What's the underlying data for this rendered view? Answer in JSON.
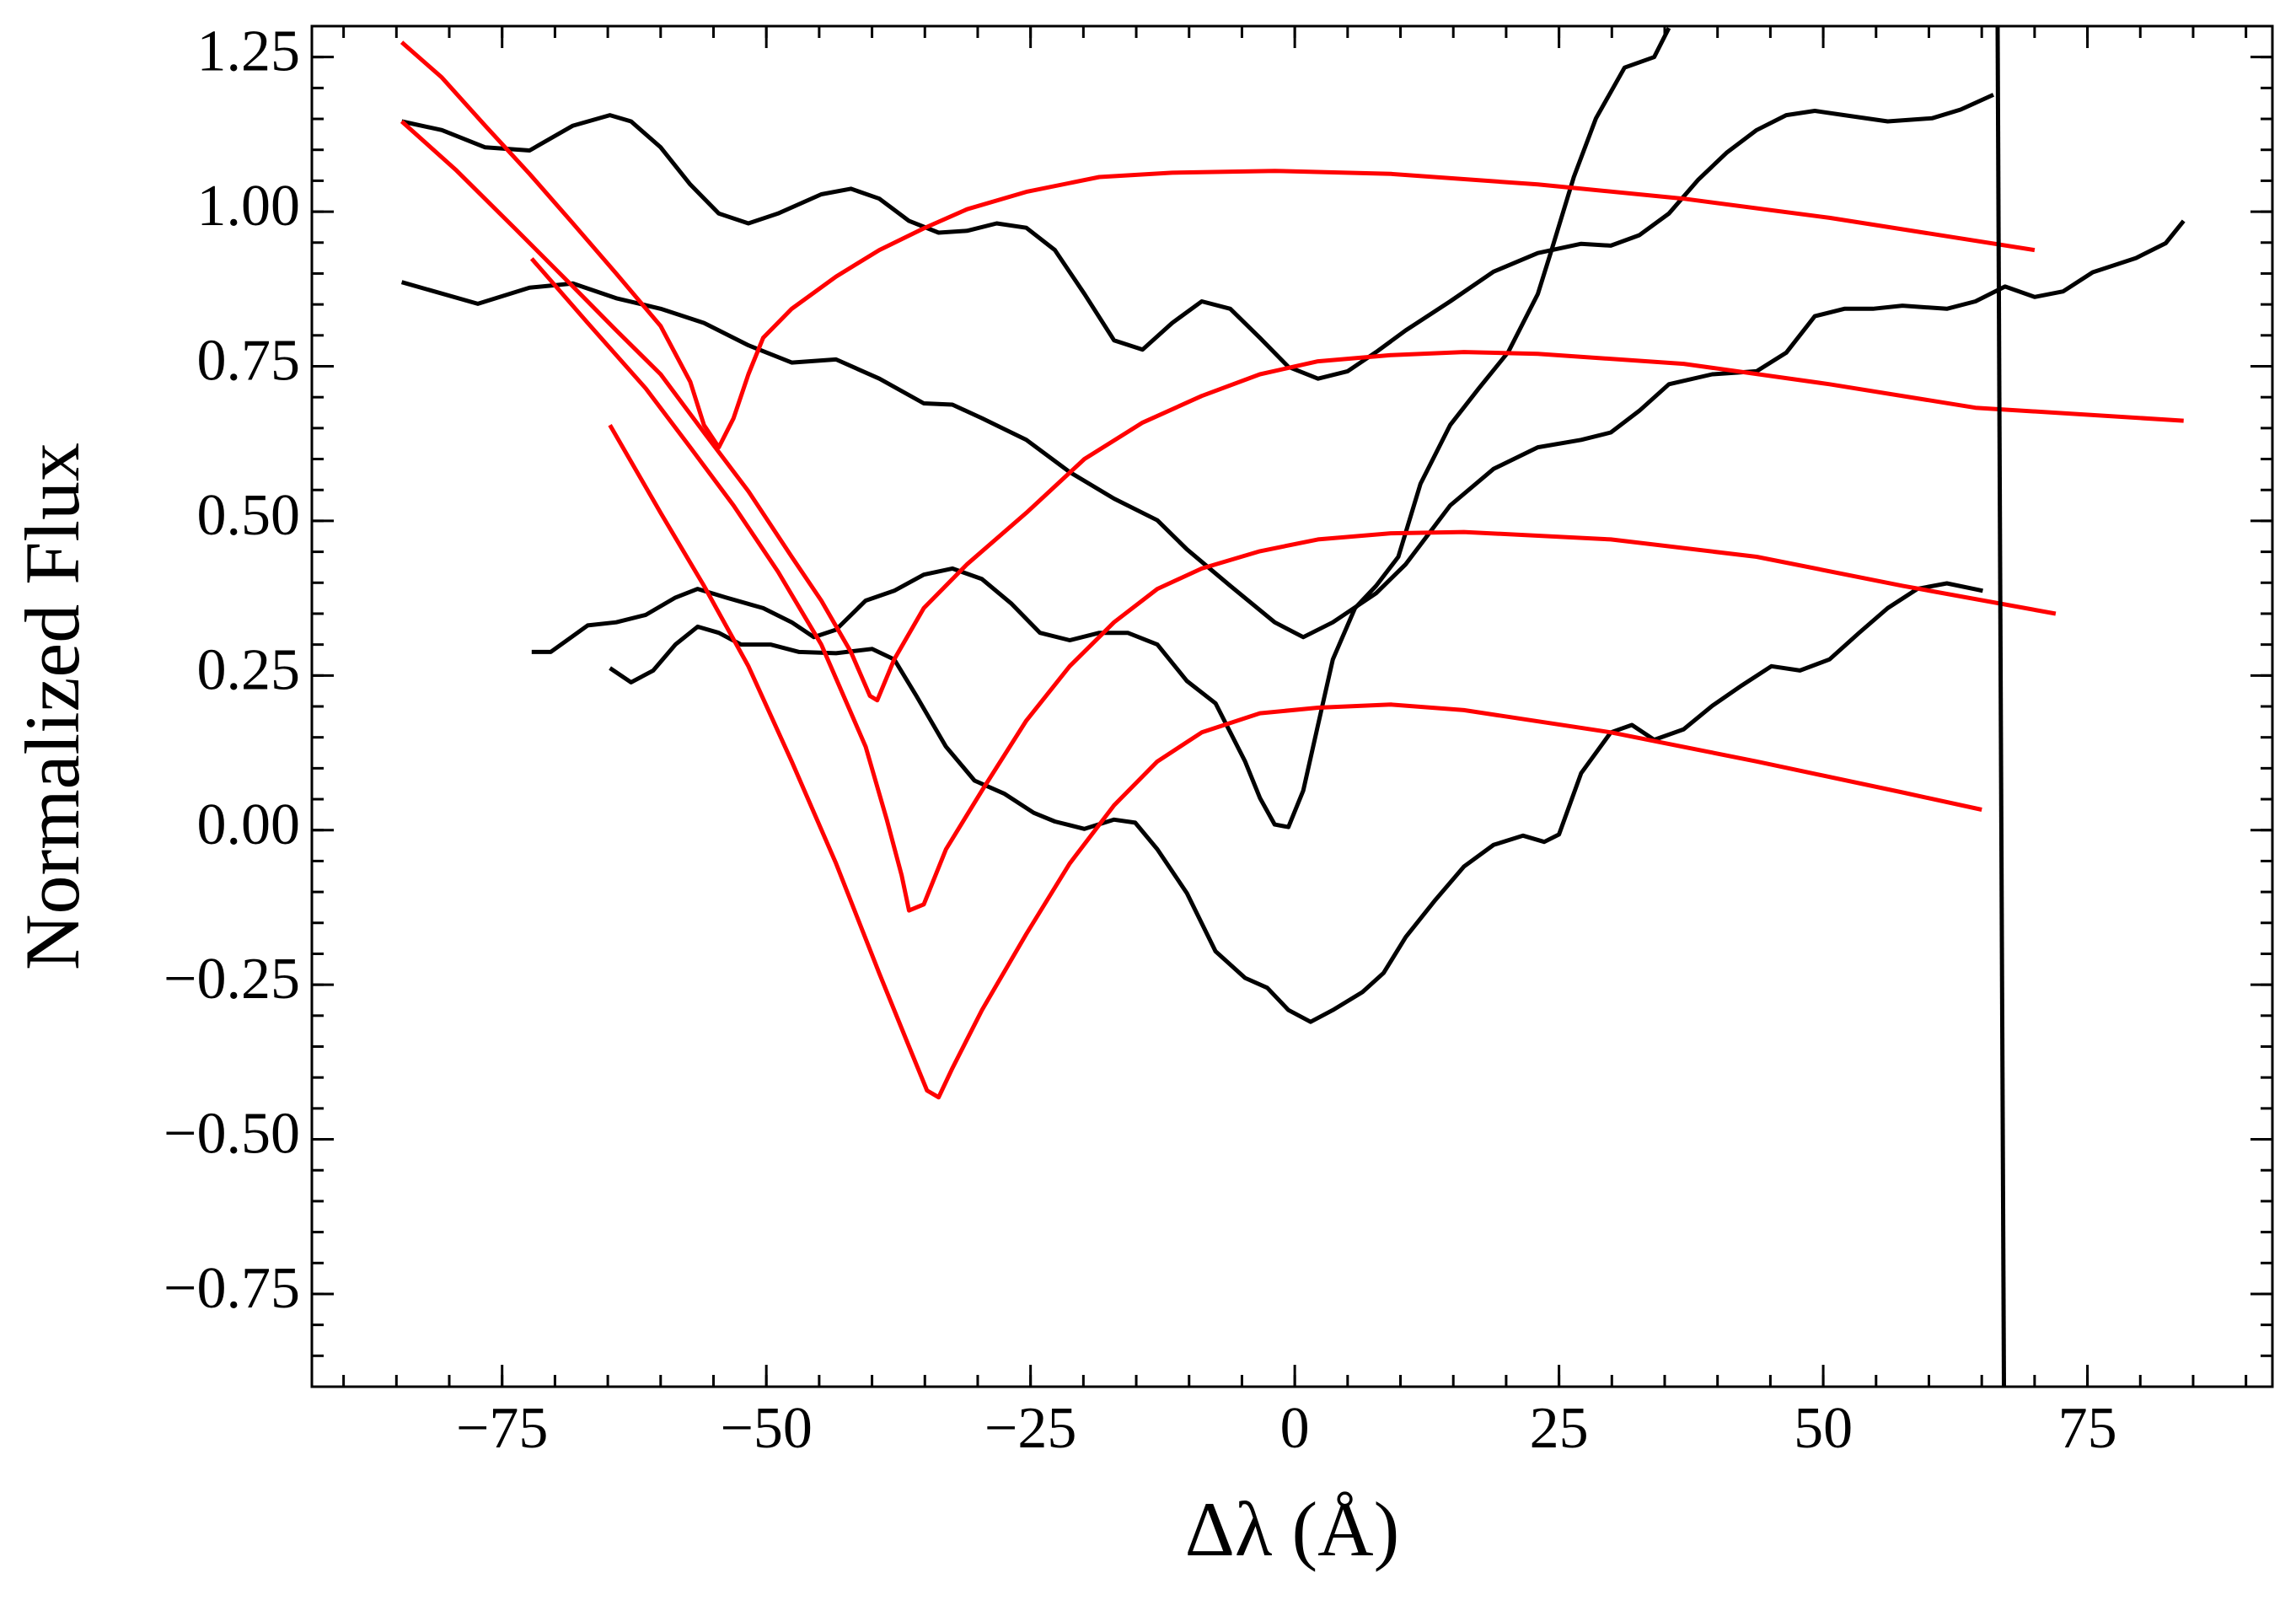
{
  "chart_data": {
    "type": "line",
    "xlabel": "Δλ (Å)",
    "ylabel": "Normalized Flux",
    "xlim": [
      -93,
      92.5
    ],
    "ylim": [
      -0.9,
      1.3
    ],
    "xticks": [
      {
        "value": -75,
        "label": "−75"
      },
      {
        "value": -50,
        "label": "−50"
      },
      {
        "value": -25,
        "label": "−25"
      },
      0,
      25,
      50,
      75
    ],
    "yticks": [
      {
        "value": -0.75,
        "label": "−0.75"
      },
      {
        "value": -0.5,
        "label": "−0.50"
      },
      {
        "value": -0.25,
        "label": "−0.25"
      },
      {
        "value": 0,
        "label": "0.00"
      },
      {
        "value": 0.25,
        "label": "0.25"
      },
      {
        "value": 0.5,
        "label": "0.50"
      },
      {
        "value": 0.75,
        "label": "0.75"
      },
      {
        "value": 1,
        "label": "1.00"
      },
      {
        "value": 1.25,
        "label": "1.25"
      }
    ],
    "x_minor_step": 5,
    "y_minor_step": 0.05,
    "grid": false,
    "series": [
      {
        "color": "#000000",
        "x": [
          -84.5,
          -80.7,
          -76.6,
          -72.4,
          -68.3,
          -64.8,
          -62.8,
          -60.0,
          -57.2,
          -54.5,
          -51.7,
          -48.9,
          -44.8,
          -42.0,
          -39.3,
          -36.5,
          -33.7,
          -31.0,
          -28.2,
          -25.4,
          -22.7,
          -19.9,
          -17.1,
          -14.4,
          -11.6,
          -8.8,
          -6.1,
          -3.3,
          -0.6,
          2.2,
          5.0,
          7.7,
          10.5,
          14.7,
          18.8,
          23.0,
          27.1,
          29.9,
          32.6,
          35.4,
          38.2,
          40.9,
          43.7,
          46.5,
          49.2,
          52.0,
          56.1,
          60.3,
          63.0,
          66.1
        ],
        "values": [
          1.146,
          1.132,
          1.104,
          1.099,
          1.139,
          1.156,
          1.146,
          1.104,
          1.044,
          0.997,
          0.981,
          0.997,
          1.028,
          1.037,
          1.021,
          0.985,
          0.966,
          0.969,
          0.981,
          0.974,
          0.938,
          0.867,
          0.792,
          0.777,
          0.82,
          0.855,
          0.843,
          0.796,
          0.749,
          0.73,
          0.742,
          0.773,
          0.808,
          0.855,
          0.903,
          0.933,
          0.948,
          0.945,
          0.962,
          0.997,
          1.052,
          1.096,
          1.132,
          1.156,
          1.163,
          1.156,
          1.146,
          1.151,
          1.165,
          1.189
        ]
      },
      {
        "color": "#000000",
        "x": [
          -84.5,
          -77.3,
          -72.4,
          -68.3,
          -64.2,
          -60.0,
          -55.9,
          -51.7,
          -47.6,
          -43.4,
          -39.3,
          -35.1,
          -32.4,
          -29.6,
          -25.4,
          -21.3,
          -17.1,
          -13.0,
          -10.2,
          -6.1,
          -1.9,
          0.8,
          3.6,
          7.7,
          10.5,
          14.7,
          18.8,
          23.0,
          27.1,
          29.9,
          32.6,
          35.4,
          39.5,
          43.7,
          46.5,
          49.2,
          52.0,
          54.7,
          57.5,
          61.7,
          64.4,
          67.2,
          70.0,
          72.7,
          75.5,
          79.6,
          82.4,
          84.1
        ],
        "values": [
          0.886,
          0.851,
          0.877,
          0.884,
          0.86,
          0.843,
          0.82,
          0.784,
          0.756,
          0.761,
          0.73,
          0.69,
          0.688,
          0.666,
          0.631,
          0.579,
          0.536,
          0.501,
          0.454,
          0.395,
          0.336,
          0.312,
          0.336,
          0.383,
          0.43,
          0.525,
          0.584,
          0.619,
          0.631,
          0.643,
          0.678,
          0.721,
          0.737,
          0.742,
          0.772,
          0.831,
          0.843,
          0.843,
          0.848,
          0.843,
          0.855,
          0.879,
          0.862,
          0.871,
          0.902,
          0.925,
          0.949,
          0.985
        ]
      },
      {
        "color": "#000000",
        "x": [
          -72.2,
          -70.4,
          -66.9,
          -64.2,
          -61.4,
          -58.6,
          -56.5,
          -53.8,
          -50.3,
          -47.6,
          -45.5,
          -43.4,
          -40.6,
          -37.9,
          -35.1,
          -32.4,
          -29.6,
          -26.8,
          -24.1,
          -21.3,
          -18.5,
          -15.8,
          -13.0,
          -10.2,
          -7.5,
          -4.7,
          -3.3,
          -1.9,
          -0.6,
          0.8,
          2.2,
          3.6,
          5.7,
          7.7,
          9.8,
          11.9,
          14.7,
          17.4,
          20.2,
          23.0,
          24.3,
          26.4,
          28.5,
          31.2,
          34.0,
          35.4
        ],
        "values": [
          0.288,
          0.288,
          0.331,
          0.336,
          0.348,
          0.376,
          0.39,
          0.376,
          0.359,
          0.336,
          0.312,
          0.324,
          0.371,
          0.387,
          0.413,
          0.423,
          0.406,
          0.366,
          0.319,
          0.307,
          0.319,
          0.319,
          0.3,
          0.241,
          0.205,
          0.111,
          0.052,
          0.009,
          0.005,
          0.064,
          0.17,
          0.276,
          0.359,
          0.395,
          0.442,
          0.56,
          0.655,
          0.714,
          0.773,
          0.867,
          0.938,
          1.056,
          1.151,
          1.233,
          1.25,
          1.297
        ]
      },
      {
        "color": "#000000",
        "x": [
          -64.8,
          -62.8,
          -60.7,
          -58.6,
          -56.5,
          -54.5,
          -52.4,
          -49.6,
          -46.9,
          -43.4,
          -40.0,
          -37.9,
          -35.8,
          -33.0,
          -30.3,
          -27.5,
          -24.7,
          -22.7,
          -19.9,
          -17.1,
          -15.1,
          -13.0,
          -10.2,
          -7.5,
          -4.7,
          -2.6,
          -0.6,
          1.5,
          3.6,
          6.4,
          8.4,
          10.5,
          13.3,
          16.0,
          18.8,
          21.6,
          23.6,
          25.0,
          27.1,
          29.9,
          31.9,
          34.0,
          36.8,
          39.5,
          42.3,
          45.1,
          47.8,
          50.6,
          53.4,
          56.1,
          58.9,
          61.7,
          65.1
        ],
        "values": [
          0.262,
          0.239,
          0.258,
          0.3,
          0.329,
          0.319,
          0.3,
          0.3,
          0.288,
          0.286,
          0.293,
          0.276,
          0.217,
          0.135,
          0.08,
          0.059,
          0.028,
          0.014,
          0.002,
          0.017,
          0.012,
          -0.031,
          -0.102,
          -0.196,
          -0.239,
          -0.255,
          -0.291,
          -0.31,
          -0.291,
          -0.262,
          -0.231,
          -0.173,
          -0.113,
          -0.059,
          -0.024,
          -0.009,
          -0.019,
          -0.007,
          0.092,
          0.158,
          0.17,
          0.146,
          0.163,
          0.201,
          0.234,
          0.265,
          0.258,
          0.276,
          0.319,
          0.359,
          0.39,
          0.399,
          0.387
        ]
      },
      {
        "color": "#ff0000",
        "x": [
          -84.5,
          -80.7,
          -76.6,
          -72.4,
          -68.3,
          -64.2,
          -60.0,
          -57.2,
          -55.9,
          -54.5,
          -53.1,
          -51.7,
          -50.3,
          -47.6,
          -43.4,
          -39.3,
          -35.1,
          -31.0,
          -25.4,
          -18.5,
          -11.6,
          -1.9,
          9.1,
          23.0,
          36.8,
          50.6,
          70.0
        ],
        "values": [
          1.274,
          1.217,
          1.139,
          1.061,
          0.981,
          0.9,
          0.815,
          0.725,
          0.655,
          0.619,
          0.666,
          0.737,
          0.796,
          0.843,
          0.895,
          0.938,
          0.973,
          1.004,
          1.032,
          1.056,
          1.063,
          1.066,
          1.061,
          1.044,
          1.021,
          0.99,
          0.938
        ]
      },
      {
        "color": "#ff0000",
        "x": [
          -84.5,
          -79.4,
          -73.8,
          -68.3,
          -64.2,
          -60.0,
          -55.9,
          -51.7,
          -47.6,
          -44.8,
          -42.0,
          -40.2,
          -39.5,
          -37.9,
          -35.1,
          -31.0,
          -25.4,
          -19.9,
          -14.4,
          -8.8,
          -3.3,
          2.2,
          9.1,
          16.0,
          23.0,
          36.8,
          50.6,
          64.4,
          84.1
        ],
        "values": [
          1.146,
          1.068,
          0.973,
          0.879,
          0.808,
          0.737,
          0.643,
          0.548,
          0.442,
          0.371,
          0.288,
          0.217,
          0.21,
          0.276,
          0.359,
          0.43,
          0.513,
          0.6,
          0.659,
          0.702,
          0.737,
          0.758,
          0.768,
          0.773,
          0.77,
          0.754,
          0.721,
          0.683,
          0.662
        ]
      },
      {
        "color": "#ff0000",
        "x": [
          -72.2,
          -66.9,
          -61.4,
          -57.2,
          -53.1,
          -48.9,
          -44.8,
          -40.6,
          -38.6,
          -37.2,
          -36.5,
          -35.1,
          -33.0,
          -29.6,
          -25.4,
          -21.3,
          -17.1,
          -13.0,
          -8.8,
          -3.3,
          2.2,
          9.1,
          16.0,
          29.9,
          43.7,
          57.5,
          72.0
        ],
        "values": [
          0.924,
          0.82,
          0.714,
          0.619,
          0.525,
          0.418,
          0.3,
          0.135,
          0.017,
          -0.073,
          -0.13,
          -0.12,
          -0.031,
          0.064,
          0.177,
          0.265,
          0.336,
          0.39,
          0.423,
          0.451,
          0.47,
          0.48,
          0.482,
          0.47,
          0.442,
          0.395,
          0.35
        ]
      },
      {
        "color": "#ff0000",
        "x": [
          -64.8,
          -60.0,
          -55.9,
          -51.7,
          -47.6,
          -43.4,
          -39.3,
          -36.5,
          -34.8,
          -33.7,
          -32.4,
          -29.6,
          -25.4,
          -21.3,
          -17.1,
          -13.0,
          -8.8,
          -3.3,
          2.2,
          9.1,
          16.0,
          29.9,
          43.7,
          57.5,
          65.0
        ],
        "values": [
          0.655,
          0.513,
          0.395,
          0.265,
          0.111,
          -0.054,
          -0.232,
          -0.35,
          -0.421,
          -0.432,
          -0.385,
          -0.291,
          -0.168,
          -0.054,
          0.04,
          0.111,
          0.158,
          0.189,
          0.198,
          0.203,
          0.194,
          0.158,
          0.111,
          0.061,
          0.033
        ]
      },
      {
        "color": "#000000",
        "x": [
          66.5,
          67.1
        ],
        "values": [
          1.3,
          -0.9
        ]
      }
    ]
  }
}
